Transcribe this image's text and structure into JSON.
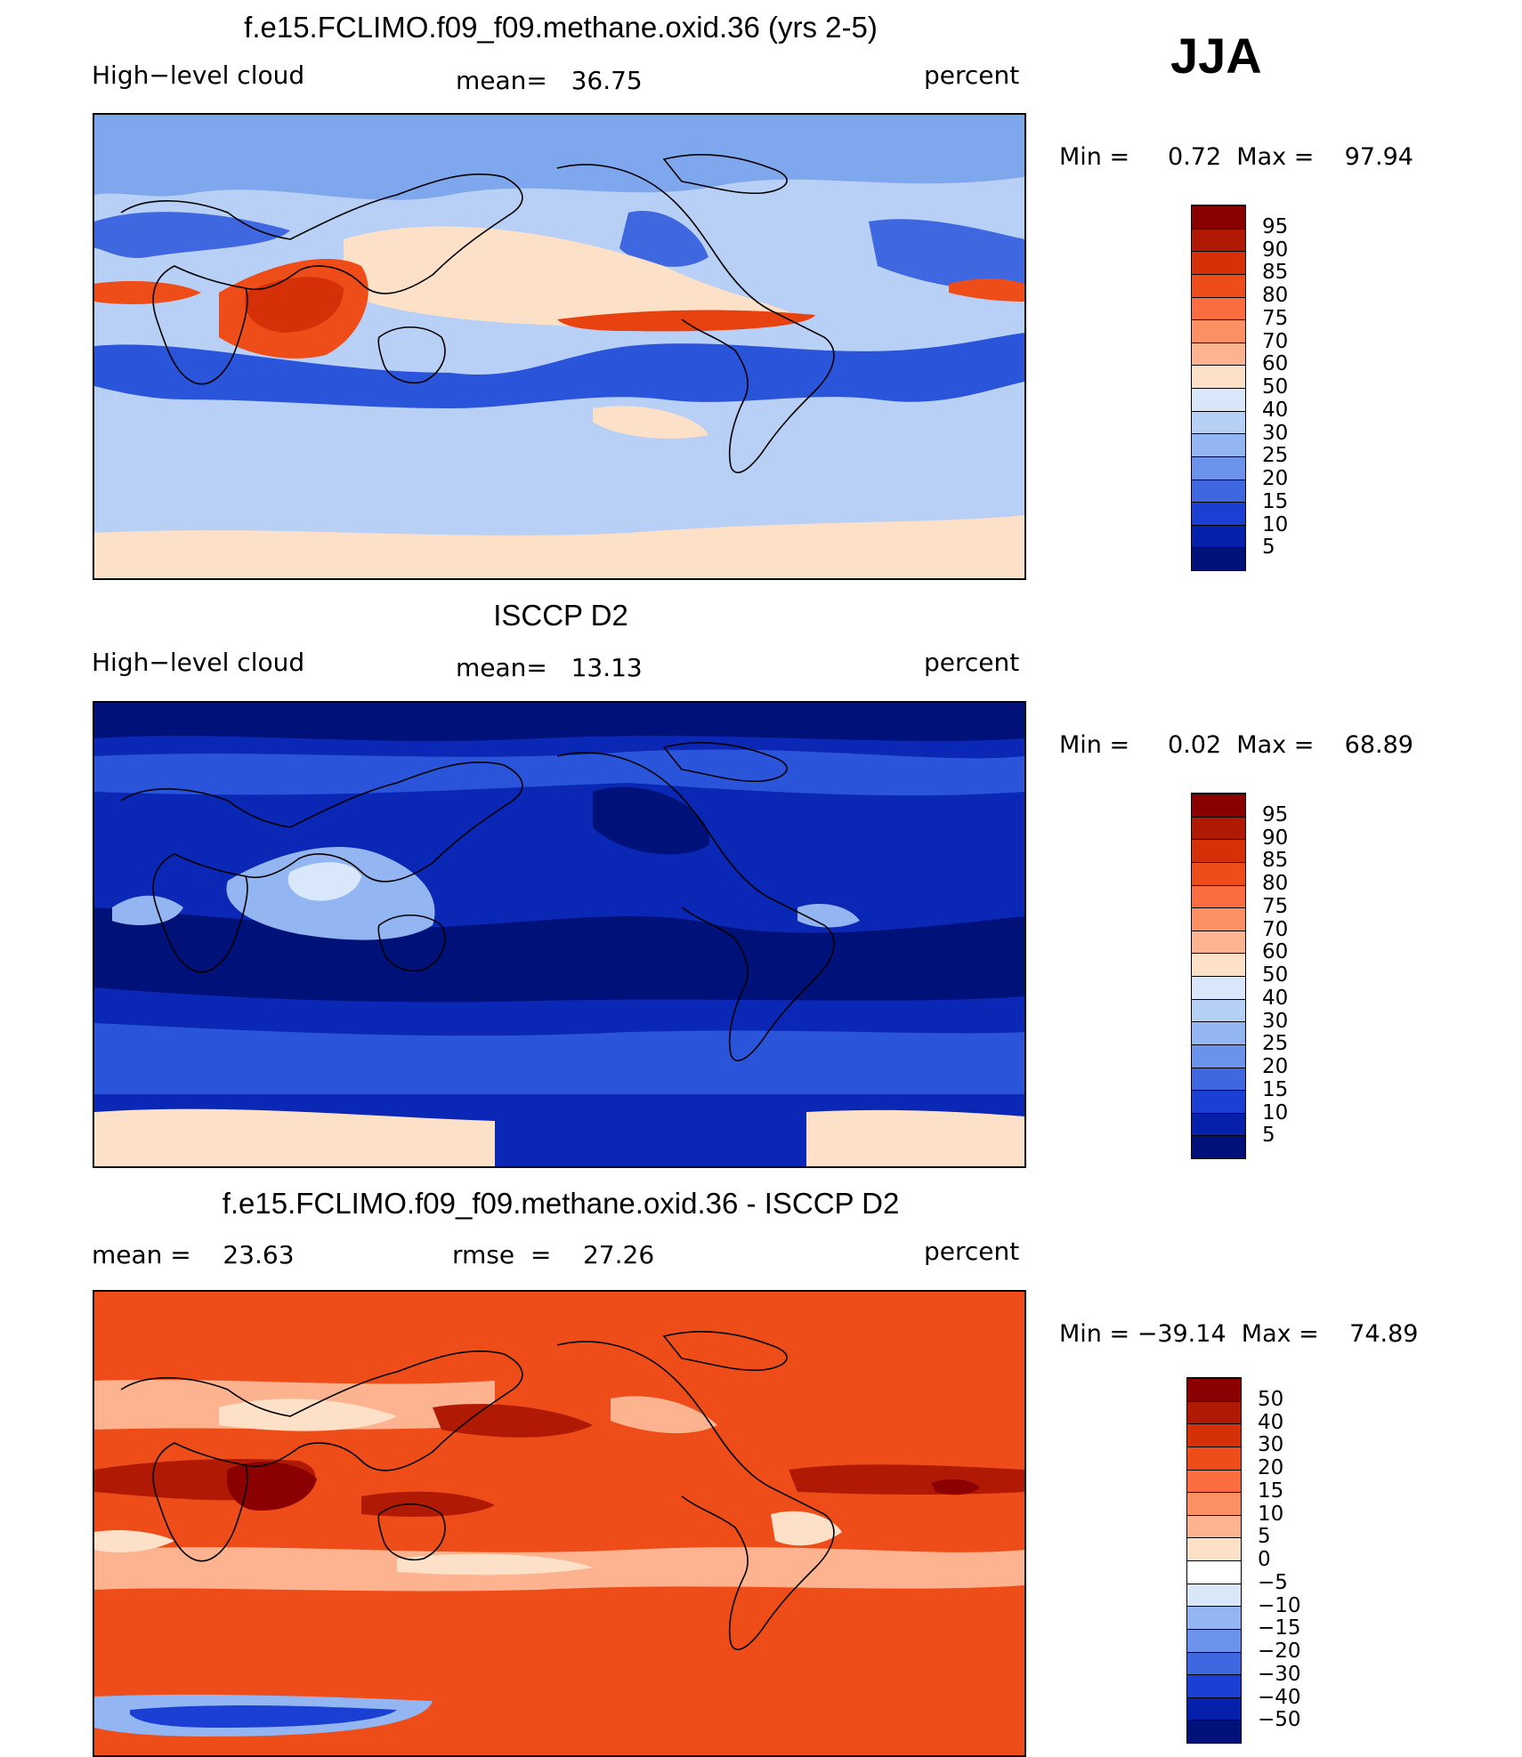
{
  "season": "JJA",
  "units": "percent",
  "panels": [
    {
      "title": "f.e15.FCLIMO.f09_f09.methane.oxid.36 (yrs 2-5)",
      "left_label": "High−level cloud",
      "center_label": "mean=   36.75",
      "right_label": "percent",
      "minmax": "Min =     0.72  Max =    97.94",
      "stats": {
        "mean": 36.75,
        "min": 0.72,
        "max": 97.94
      },
      "colorbar": {
        "labels": [
          "95",
          "90",
          "85",
          "80",
          "75",
          "70",
          "60",
          "50",
          "40",
          "30",
          "25",
          "20",
          "15",
          "10",
          "5"
        ],
        "colors": [
          "#8b0000",
          "#b01a05",
          "#d63008",
          "#ee4d19",
          "#fb6d3e",
          "#fd9063",
          "#fdb38f",
          "#fde0c8",
          "#d8e8fa",
          "#b5cff5",
          "#93b5f1",
          "#6c93eb",
          "#3f68e0",
          "#1a3fd2",
          "#0521ac",
          "#00117a"
        ]
      },
      "regions": {
        "background": "#b8d0f5",
        "polar_n": "#7fa7ee",
        "pacific_itcz": "#fde0c8",
        "indian_monsoon": "#ee4d19",
        "monsoon_core": "#d63008",
        "central_america": "#e84210",
        "subtropics_s": "#2a55db",
        "subtropics_n": "#3f68e0",
        "antarctic": "#fde0c8"
      }
    },
    {
      "title": "ISCCP D2",
      "left_label": "High−level cloud",
      "center_label": "mean=   13.13",
      "right_label": "percent",
      "minmax": "Min =     0.02  Max =    68.89",
      "stats": {
        "mean": 13.13,
        "min": 0.02,
        "max": 68.89
      },
      "colorbar": {
        "labels": [
          "95",
          "90",
          "85",
          "80",
          "75",
          "70",
          "60",
          "50",
          "40",
          "30",
          "25",
          "20",
          "15",
          "10",
          "5"
        ],
        "colors": [
          "#8b0000",
          "#b01a05",
          "#d63008",
          "#ee4d19",
          "#fb6d3e",
          "#fd9063",
          "#fdb38f",
          "#fde0c8",
          "#d8e8fa",
          "#b5cff5",
          "#93b5f1",
          "#6c93eb",
          "#3f68e0",
          "#1a3fd2",
          "#0521ac",
          "#00117a"
        ]
      },
      "regions": {
        "background": "#0a27b5",
        "deep": "#00117a",
        "midlat": "#2a55db",
        "warm_pool": "#93b5f1",
        "monsoon": "#d8e8fa",
        "antarctic": "#fde0c8"
      }
    },
    {
      "title": "f.e15.FCLIMO.f09_f09.methane.oxid.36 - ISCCP D2",
      "left_label": "mean =    23.63",
      "center_label": "rmse  =    27.26",
      "right_label": "percent",
      "minmax": "Min = −39.14  Max =    74.89",
      "stats": {
        "mean": 23.63,
        "rmse": 27.26,
        "min": -39.14,
        "max": 74.89
      },
      "colorbar": {
        "labels": [
          "50",
          "40",
          "30",
          "20",
          "15",
          "10",
          "5",
          "0",
          "−5",
          "−10",
          "−15",
          "−20",
          "−30",
          "−40",
          "−50"
        ],
        "colors": [
          "#8b0000",
          "#b01a05",
          "#d63008",
          "#ee4d19",
          "#fb6d3e",
          "#fd9063",
          "#fdb38f",
          "#fde0c8",
          "#ffffff",
          "#d8e8fa",
          "#93b5f1",
          "#6c93eb",
          "#3f68e0",
          "#1a3fd2",
          "#0521ac",
          "#00117a"
        ]
      },
      "regions": {
        "background": "#ee4d19",
        "band_light": "#fdb38f",
        "band_pale": "#fde0c8",
        "hot": "#b01a05",
        "core": "#8b0000",
        "antarctic_blue": "#1a3fd2",
        "antarctic_light": "#93b5f1"
      }
    }
  ]
}
